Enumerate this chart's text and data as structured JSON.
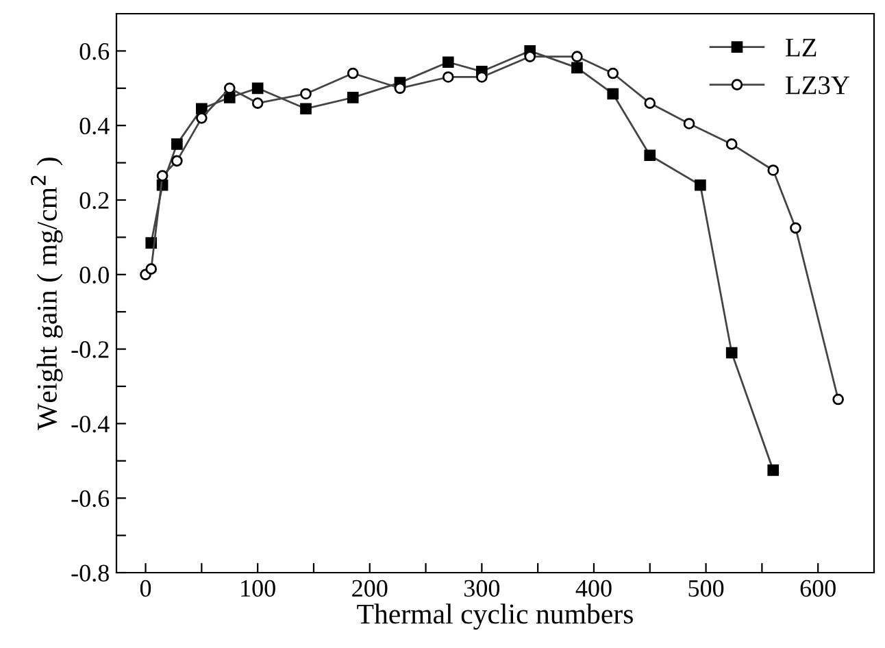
{
  "chart_data": {
    "type": "line",
    "xlabel": "Thermal cyclic numbers",
    "ylabel": "Weight gain ( mg/cm$^{2}$ )",
    "xlim": [
      -26,
      650
    ],
    "ylim": [
      -0.8,
      0.7
    ],
    "xticks": [
      0,
      {
        "value": 50,
        "label": null
      },
      100,
      {
        "value": 150,
        "label": null
      },
      200,
      {
        "value": 250,
        "label": null
      },
      300,
      {
        "value": 350,
        "label": null
      },
      400,
      {
        "value": 450,
        "label": null
      },
      500,
      {
        "value": 550,
        "label": null
      },
      600
    ],
    "yticks": [
      {
        "value": -0.8,
        "label": "-0.8"
      },
      {
        "value": -0.7,
        "label": null
      },
      {
        "value": -0.6,
        "label": "-0.6"
      },
      {
        "value": -0.5,
        "label": null
      },
      {
        "value": -0.4,
        "label": "-0.4"
      },
      {
        "value": -0.3,
        "label": null
      },
      {
        "value": -0.2,
        "label": "-0.2"
      },
      {
        "value": -0.1,
        "label": null
      },
      {
        "value": 0,
        "label": "0.0"
      },
      {
        "value": 0.1,
        "label": null
      },
      {
        "value": 0.2,
        "label": "0.2"
      },
      {
        "value": 0.3,
        "label": null
      },
      {
        "value": 0.4,
        "label": "0.4"
      },
      {
        "value": 0.5,
        "label": null
      },
      {
        "value": 0.6,
        "label": "0.6"
      }
    ],
    "legend": "top right",
    "grid": false,
    "line_style": "solid",
    "series": [
      {
        "name": "LZ",
        "color": "#000000",
        "marker": "square",
        "x": [
          5,
          15,
          28,
          50,
          75,
          100,
          143,
          185,
          227,
          270,
          300,
          343,
          385,
          417,
          450,
          495,
          523,
          560
        ],
        "values": [
          0.085,
          0.24,
          0.35,
          0.445,
          0.475,
          0.5,
          0.445,
          0.475,
          0.515,
          0.57,
          0.545,
          0.6,
          0.555,
          0.485,
          0.32,
          0.24,
          -0.21,
          -0.525
        ]
      },
      {
        "name": "LZ3Y",
        "color": "#000000",
        "marker": "circle",
        "x": [
          0,
          5,
          15,
          28,
          50,
          75,
          100,
          143,
          185,
          227,
          270,
          300,
          343,
          385,
          417,
          450,
          485,
          523,
          560,
          580,
          618
        ],
        "values": [
          0,
          0.015,
          0.265,
          0.305,
          0.42,
          0.5,
          0.46,
          0.485,
          0.54,
          0.5,
          0.53,
          0.53,
          0.585,
          0.585,
          0.54,
          0.46,
          0.405,
          0.35,
          0.28,
          0.125,
          -0.335
        ]
      }
    ]
  }
}
